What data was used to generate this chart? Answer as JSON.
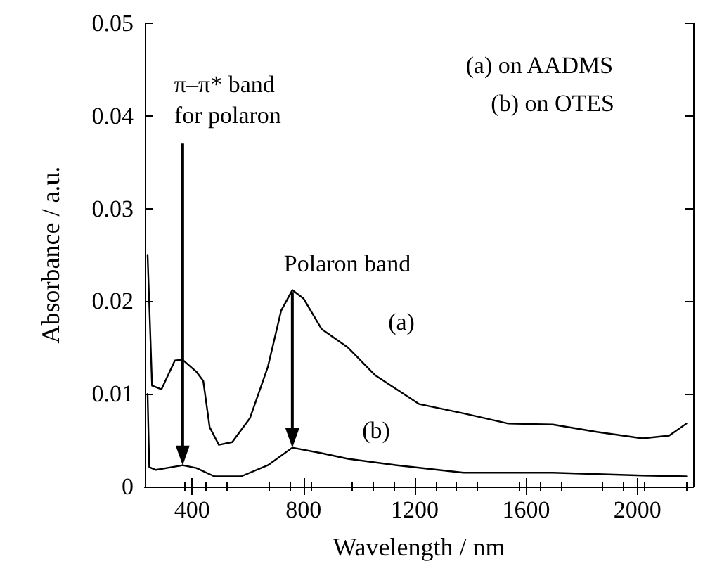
{
  "chart_data": {
    "type": "line",
    "xlabel": "Wavelength / nm",
    "ylabel": "Absorbance / a.u.",
    "xlim": [
      230,
      2200
    ],
    "xticks": [
      400,
      800,
      1200,
      1600,
      2000
    ],
    "ylim": [
      0,
      0.05
    ],
    "yticks": [
      0,
      0.01,
      0.02,
      0.03,
      0.04,
      0.05
    ],
    "grid": false,
    "legend": false,
    "marker": "none",
    "line_style": "solid",
    "series": [
      {
        "name": "(a)",
        "color": "#000000",
        "x": [
          240,
          256,
          290,
          338,
          365,
          415,
          440,
          463,
          496,
          544,
          608,
          672,
          720,
          760,
          800,
          865,
          960,
          1058,
          1216,
          1375,
          1536,
          1696,
          1854,
          2018,
          2114,
          2176
        ],
        "values": [
          0.025,
          0.0109,
          0.0105,
          0.0136,
          0.0137,
          0.0124,
          0.0114,
          0.0064,
          0.0045,
          0.0048,
          0.0074,
          0.0129,
          0.019,
          0.0212,
          0.0203,
          0.017,
          0.015,
          0.012,
          0.0089,
          0.0079,
          0.0068,
          0.0067,
          0.0059,
          0.0052,
          0.0055,
          0.0068
        ]
      },
      {
        "name": "(b)",
        "color": "#000000",
        "x": [
          240,
          246,
          270,
          366,
          415,
          480,
          576,
          672,
          760,
          865,
          960,
          1136,
          1375,
          1696,
          2018,
          2176
        ],
        "values": [
          0.01,
          0.0021,
          0.0018,
          0.0023,
          0.002,
          0.0011,
          0.0011,
          0.0023,
          0.0042,
          0.0036,
          0.003,
          0.0023,
          0.0015,
          0.0015,
          0.0012,
          0.0011
        ]
      }
    ],
    "annotations": [
      "π–π* band\nfor polaron",
      "Polaron band",
      "(a) on AADMS",
      "(b) on OTES"
    ]
  }
}
